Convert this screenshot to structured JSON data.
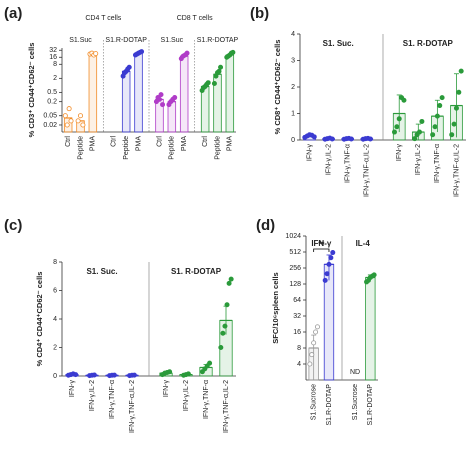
{
  "chart_data": [
    {
      "type": "bar",
      "label": "(a)",
      "ylabel": "% CD3⁺ CD44⁺CD62⁻ cells",
      "log": true,
      "divider": "dotted",
      "ylim": [
        0.01,
        40
      ],
      "yticks": [
        0.02,
        0.05,
        0.2,
        0.5,
        2,
        8,
        16,
        32
      ],
      "group_titles": [
        "CD4 T cells",
        "CD8 T cells"
      ],
      "categories": [
        "Ctrl",
        "Peptide",
        "PMA",
        "Ctrl",
        "Peptide",
        "PMA",
        "Ctrl",
        "Peptide",
        "PMA",
        "Ctrl",
        "Peptide",
        "PMA"
      ],
      "series": [
        {
          "name": "S1.Suc",
          "color": "#f28c28",
          "hollow": true,
          "values": [
            0.04,
            0.03,
            22,
            null,
            null,
            null,
            null,
            null,
            null,
            null,
            null,
            null
          ],
          "points": [
            [
              0.05,
              0.02,
              0.1,
              0.03
            ],
            [
              0.03,
              0.05,
              0.02
            ],
            [
              22,
              24,
              20,
              23
            ],
            [],
            [],
            [],
            [],
            [],
            [],
            [],
            [],
            []
          ]
        },
        {
          "name": "S1.R-DOTAP",
          "color": "#3b3bd1",
          "hollow": false,
          "values": [
            null,
            null,
            null,
            null,
            4,
            24,
            null,
            null,
            null,
            null,
            null,
            null
          ],
          "points": [
            [],
            [],
            [],
            [],
            [
              2.5,
              3.5,
              4,
              5,
              6
            ],
            [
              20,
              22,
              24,
              26,
              28
            ],
            [],
            [],
            [],
            [],
            [],
            []
          ]
        },
        {
          "name": "S1.Suc",
          "color": "#b03cc8",
          "hollow": false,
          "values": [
            null,
            null,
            null,
            null,
            null,
            null,
            0.25,
            0.2,
            18,
            null,
            null,
            null
          ],
          "points": [
            [],
            [],
            [],
            [],
            [],
            [],
            [
              0.2,
              0.3,
              0.25,
              0.4,
              0.15
            ],
            [
              0.15,
              0.2,
              0.25,
              0.3
            ],
            [
              14,
              18,
              20,
              24
            ],
            [],
            [],
            []
          ]
        },
        {
          "name": "S1.R-DOTAP",
          "color": "#2a9a3a",
          "hollow": false,
          "values": [
            null,
            null,
            null,
            null,
            null,
            null,
            null,
            null,
            null,
            0.9,
            3,
            20
          ],
          "points": [
            [],
            [],
            [],
            [],
            [],
            [],
            [],
            [],
            [],
            [
              0.6,
              0.8,
              0.9,
              1.1,
              1.3
            ],
            [
              1.2,
              2.5,
              3.5,
              4,
              6
            ],
            [
              16,
              18,
              20,
              24,
              26
            ]
          ]
        }
      ]
    },
    {
      "type": "bar",
      "label": "(b)",
      "ylabel": "% CD8⁺ CD44⁺CD62⁻ cells",
      "log": false,
      "divider": "solid",
      "ylim": [
        0,
        4
      ],
      "yticks": [
        0,
        1,
        2,
        3,
        4
      ],
      "categories": [
        "IFN-γ",
        "IFN-γ,IL-2",
        "IFN-γ,TNF-α",
        "IFN-γ,TNF-α,IL-2",
        "IFN-γ",
        "IFN-γ,IL-2",
        "IFN-γ,TNF-α",
        "IFN-γ,TNF-α,IL-2"
      ],
      "series": [
        {
          "name": "S1. Suc.",
          "color": "#3b3bd1",
          "hollow": false,
          "values": [
            0.15,
            0.05,
            0.05,
            0.05,
            null,
            null,
            null,
            null
          ],
          "errors": [
            0.05,
            0.03,
            0.03,
            0.03,
            null,
            null,
            null,
            null
          ],
          "points": [
            [
              0.1,
              0.15,
              0.2,
              0.18,
              0.12
            ],
            [
              0.03,
              0.05,
              0.07,
              0.04
            ],
            [
              0.03,
              0.05,
              0.06,
              0.04
            ],
            [
              0.03,
              0.05,
              0.06,
              0.04
            ],
            [],
            [],
            [],
            []
          ]
        },
        {
          "name": "S1. R-DOTAP",
          "color": "#2a9a3a",
          "hollow": false,
          "values": [
            null,
            null,
            null,
            null,
            1.0,
            0.3,
            0.9,
            1.3
          ],
          "errors": [
            null,
            null,
            null,
            null,
            0.7,
            0.3,
            0.6,
            1.2
          ],
          "points": [
            [],
            [],
            [],
            [],
            [
              0.3,
              0.5,
              0.8,
              1.6,
              1.5
            ],
            [
              0.05,
              0.2,
              0.3,
              0.7
            ],
            [
              0.2,
              0.5,
              0.9,
              1.3,
              1.6
            ],
            [
              0.2,
              0.6,
              1.2,
              1.8,
              2.6
            ]
          ]
        }
      ]
    },
    {
      "type": "bar",
      "label": "(c)",
      "ylabel": "% CD4⁺ CD44⁺CD62⁻ cells",
      "log": false,
      "divider": "solid",
      "ylim": [
        0,
        8
      ],
      "yticks": [
        0,
        2,
        4,
        6,
        8
      ],
      "categories": [
        "IFN-γ",
        "IFN-γ,IL-2",
        "IFN-γ,TNF-α",
        "IFN-γ,TNF-α,IL-2",
        "IFN-γ",
        "IFN-γ,IL-2",
        "IFN-γ,TNF-α",
        "IFN-γ,TNF-α,IL-2"
      ],
      "series": [
        {
          "name": "S1. Suc.",
          "color": "#3b3bd1",
          "hollow": false,
          "values": [
            0.1,
            0.05,
            0.05,
            0.05,
            null,
            null,
            null,
            null
          ],
          "errors": [
            0.05,
            0.03,
            0.03,
            0.03,
            null,
            null,
            null,
            null
          ],
          "points": [
            [
              0.05,
              0.1,
              0.15,
              0.1
            ],
            [
              0.03,
              0.05,
              0.07
            ],
            [
              0.03,
              0.05,
              0.06
            ],
            [
              0.03,
              0.05,
              0.06
            ],
            [],
            [],
            [],
            []
          ]
        },
        {
          "name": "S1. R-DOTAP",
          "color": "#2a9a3a",
          "hollow": false,
          "values": [
            null,
            null,
            null,
            null,
            0.2,
            0.1,
            0.6,
            3.9
          ],
          "errors": [
            null,
            null,
            null,
            null,
            0.1,
            0.05,
            0.2,
            1.0
          ],
          "points": [
            [],
            [],
            [],
            [],
            [
              0.1,
              0.2,
              0.25,
              0.3
            ],
            [
              0.05,
              0.1,
              0.15
            ],
            [
              0.3,
              0.5,
              0.7,
              0.9
            ],
            [
              2,
              3,
              3.5,
              5,
              6.5,
              6.8
            ]
          ]
        }
      ]
    },
    {
      "type": "bar",
      "label": "(d)",
      "ylabel": "SFC/10⁶spleen cells",
      "log": true,
      "divider": "solid",
      "ylim": [
        2,
        1024
      ],
      "yticks": [
        4,
        8,
        16,
        32,
        64,
        128,
        256,
        512,
        1024
      ],
      "group_titles": [
        "IFN-γ",
        "IL-4"
      ],
      "significance": "**",
      "missing_label": "ND",
      "categories": [
        "S1.Sucrose",
        "S1.R-DOTAP",
        "S1.Sucrose",
        "S1.R-DOTAP"
      ],
      "values": [
        8,
        300,
        null,
        170
      ],
      "errors": [
        6,
        150,
        null,
        20
      ],
      "colors": [
        "#999999",
        "#3b3bd1",
        "#999999",
        "#2a9a3a"
      ],
      "points": [
        [
          4,
          6,
          10,
          16,
          20
        ],
        [
          150,
          200,
          300,
          400,
          500
        ],
        [],
        [
          140,
          150,
          170,
          180,
          190
        ]
      ]
    }
  ]
}
